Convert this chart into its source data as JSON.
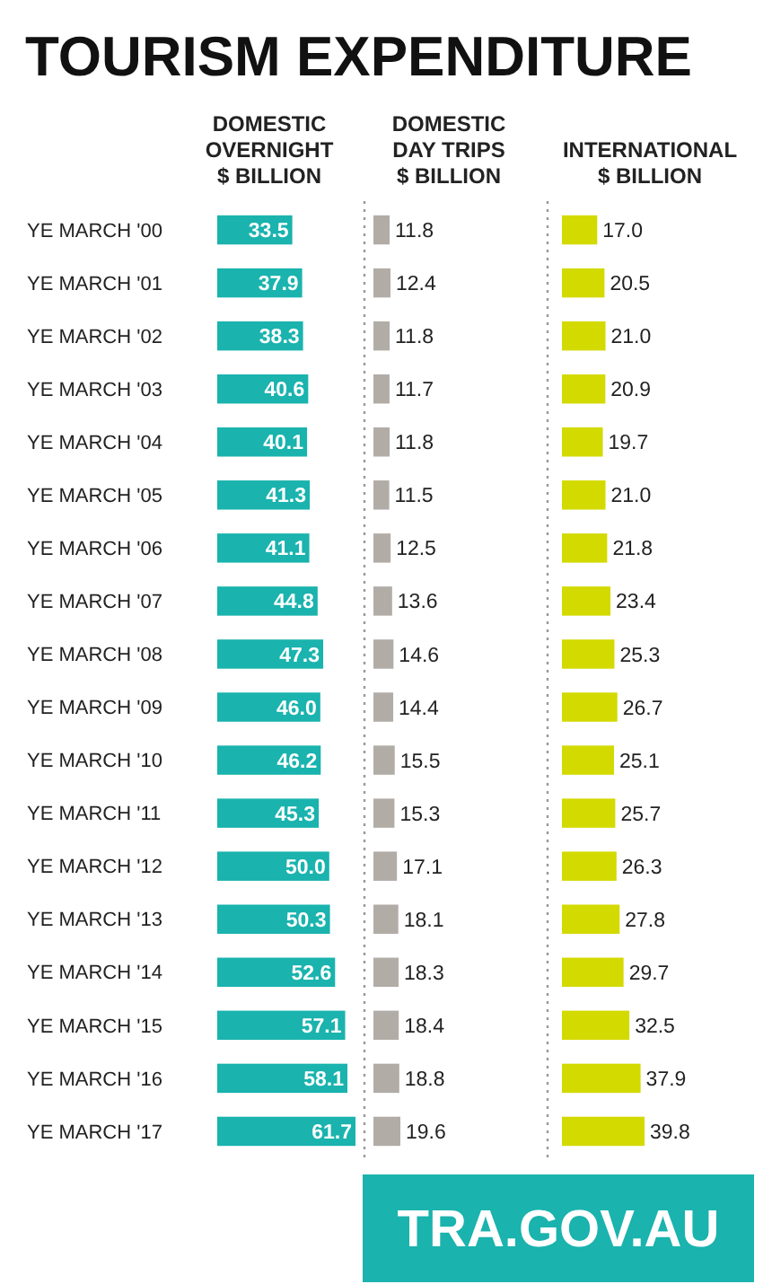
{
  "chart_data": [
    {
      "type": "bar",
      "orientation": "horizontal",
      "title": "TOURISM EXPENDITURE",
      "subtitle": "DOMESTIC\nOVERNIGHT\n$ BILLION",
      "categories": [
        "YE MARCH '00",
        "YE MARCH '01",
        "YE MARCH '02",
        "YE MARCH '03",
        "YE MARCH '04",
        "YE MARCH '05",
        "YE MARCH '06",
        "YE MARCH '07",
        "YE MARCH '08",
        "YE MARCH '09",
        "YE MARCH '10",
        "YE MARCH '11",
        "YE MARCH '12",
        "YE MARCH '13",
        "YE MARCH '14",
        "YE MARCH '15",
        "YE MARCH '16",
        "YE MARCH '17"
      ],
      "values": [
        33.5,
        37.9,
        38.3,
        40.6,
        40.1,
        41.3,
        41.1,
        44.8,
        47.3,
        46.0,
        46.2,
        45.3,
        50.0,
        50.3,
        52.6,
        57.1,
        58.1,
        61.7
      ],
      "value_labels": [
        "33.5",
        "37.9",
        "38.3",
        "40.6",
        "40.1",
        "41.3",
        "41.1",
        "44.8",
        "47.3",
        "46.0",
        "46.2",
        "45.3",
        "50.0",
        "50.3",
        "52.6",
        "57.1",
        "58.1",
        "61.7"
      ],
      "color": "#1ab3ae",
      "tick_labels": "y"
    },
    {
      "type": "bar",
      "orientation": "horizontal",
      "subtitle": "DOMESTIC\nDAY TRIPS\n$ BILLION",
      "categories": [
        null,
        null,
        null,
        null,
        null,
        null,
        null,
        null,
        null,
        null,
        null,
        null,
        null,
        null,
        null,
        null,
        null,
        null
      ],
      "values": [
        11.8,
        12.4,
        11.8,
        11.7,
        11.8,
        11.5,
        12.5,
        13.6,
        14.6,
        14.4,
        15.5,
        15.3,
        17.1,
        18.1,
        18.3,
        18.4,
        18.8,
        19.6
      ],
      "data_labels": true,
      "color": "#b2aca7",
      "tick_labels": false
    },
    {
      "type": "bar",
      "orientation": "horizontal",
      "subtitle": "INTERNATIONAL\n$ BILLION",
      "categories": [
        null,
        null,
        null,
        null,
        null,
        null,
        null,
        null,
        null,
        null,
        null,
        null,
        null,
        null,
        null,
        null,
        null,
        null
      ],
      "values": [
        17.0,
        20.5,
        21.0,
        20.9,
        19.7,
        21.0,
        21.8,
        23.4,
        25.3,
        26.7,
        25.1,
        25.7,
        26.3,
        27.8,
        29.7,
        32.5,
        37.9,
        39.8
      ],
      "value_labels": [
        "17.0",
        "20.5",
        "21.0",
        "20.9",
        "19.7",
        "21.0",
        "21.8",
        "23.4",
        "25.3",
        "26.7",
        "25.1",
        "25.7",
        "26.3",
        "27.8",
        "29.7",
        "32.5",
        "37.9",
        "39.8"
      ],
      "color": "#d3da00",
      "tick_labels": false,
      "annotations": [
        "TRA.GOV.AU"
      ]
    }
  ]
}
